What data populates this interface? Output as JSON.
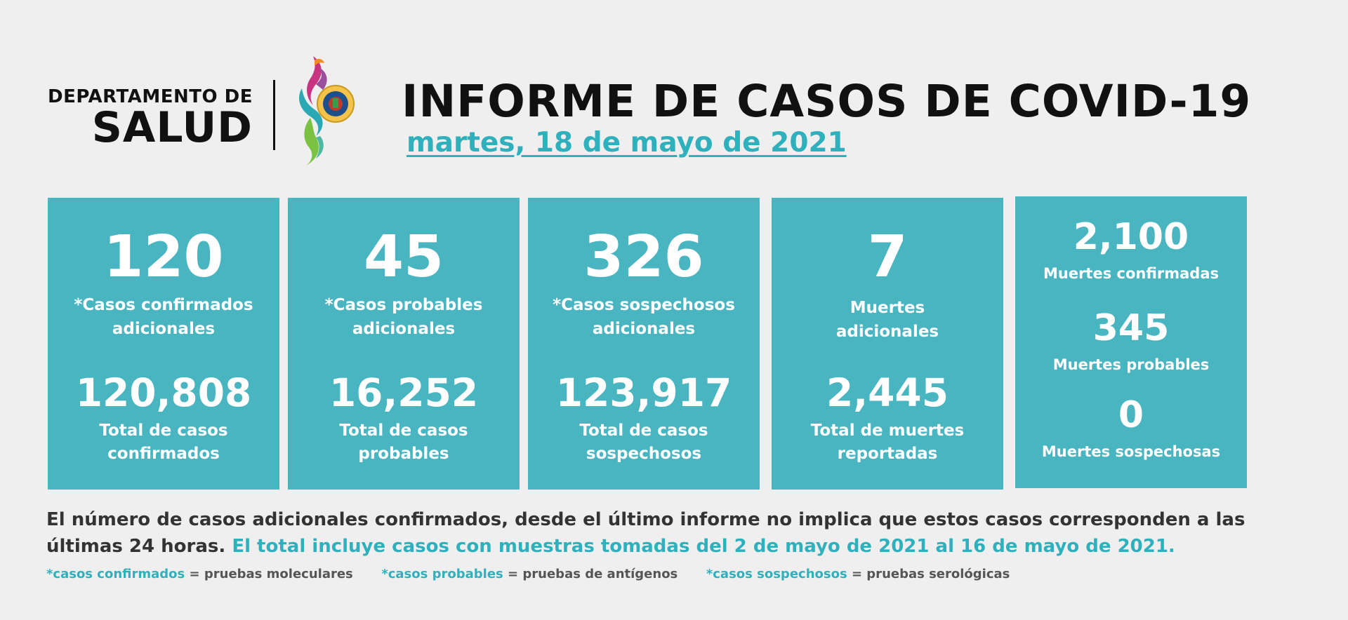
{
  "header": {
    "dept_line1": "DEPARTAMENTO DE",
    "dept_line2": "SALUD",
    "title": "INFORME DE CASOS DE COVID-19",
    "date": "martes, 18 de mayo de 2021"
  },
  "cards": [
    {
      "number": "120",
      "label1": "*Casos confirmados",
      "label2": "adicionales",
      "total": "120,808",
      "total_label1": "Total de casos",
      "total_label2": "confirmados"
    },
    {
      "number": "45",
      "label1": "*Casos probables",
      "label2": "adicionales",
      "total": "16,252",
      "total_label1": "Total de casos",
      "total_label2": "probables"
    },
    {
      "number": "326",
      "label1": "*Casos sospechosos",
      "label2": "adicionales",
      "total": "123,917",
      "total_label1": "Total de casos",
      "total_label2": "sospechosos"
    },
    {
      "number": "7",
      "label1": "Muertes",
      "label2": "adicionales",
      "total": "2,445",
      "total_label1": "Total de muertes",
      "total_label2": "reportadas"
    }
  ],
  "deaths": [
    {
      "number": "2,100",
      "label": "Muertes confirmadas"
    },
    {
      "number": "345",
      "label": "Muertes probables"
    },
    {
      "number": "0",
      "label": "Muertes sospechosas"
    }
  ],
  "note": {
    "text1": "El número de casos adicionales confirmados, desde el último informe no implica que estos casos corresponden a las últimas 24 horas.",
    "text2": "El total incluye casos con muestras tomadas del 2 de mayo de 2021 al 16 de mayo de 2021."
  },
  "legend": [
    {
      "term": "*casos confirmados",
      "definition": "= pruebas moleculares"
    },
    {
      "term": "*casos probables",
      "definition": "= pruebas de antígenos"
    },
    {
      "term": "*casos sospechosos",
      "definition": "= pruebas serológicas"
    }
  ],
  "colors": {
    "accent": "#48b5c1",
    "accent_text": "#2fb1bd",
    "background": "#efefef"
  },
  "icons": {
    "logo": "puerto-rico-seal-ribbon-logo"
  }
}
